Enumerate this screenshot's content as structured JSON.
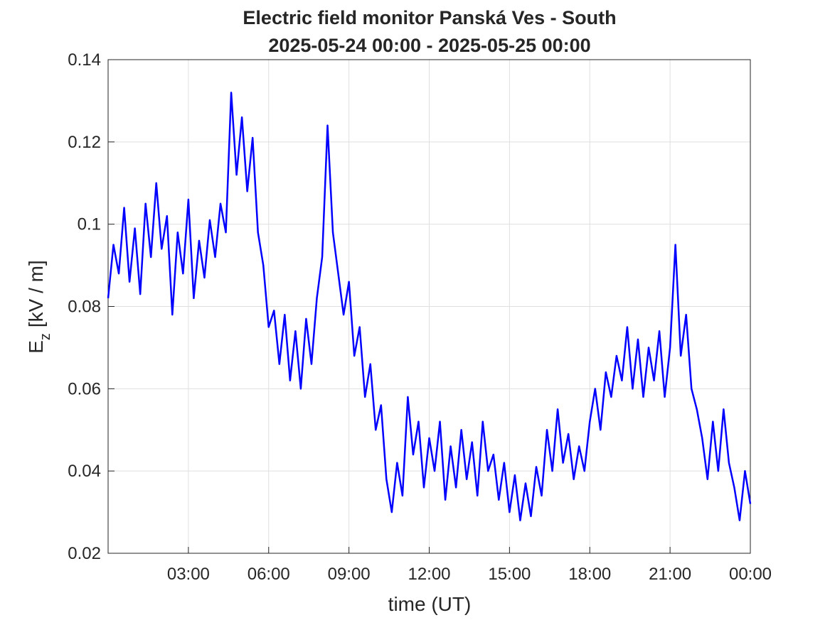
{
  "chart_data": {
    "type": "line",
    "title": "Electric field monitor Panská Ves - South",
    "subtitle": "2025-05-24 00:00 - 2025-05-25 00:00",
    "xlabel": "time (UT)",
    "ylabel_base": "E",
    "ylabel_subscript": "z",
    "ylabel_unit": "[kV / m]",
    "xlim": [
      0,
      24
    ],
    "xticks": [
      {
        "value": 3,
        "label": "03:00"
      },
      {
        "value": 6,
        "label": "06:00"
      },
      {
        "value": 9,
        "label": "09:00"
      },
      {
        "value": 12,
        "label": "12:00"
      },
      {
        "value": 15,
        "label": "15:00"
      },
      {
        "value": 18,
        "label": "18:00"
      },
      {
        "value": 21,
        "label": "21:00"
      },
      {
        "value": 24,
        "label": "00:00"
      }
    ],
    "ylim": [
      0.02,
      0.14
    ],
    "yticks": [
      0.02,
      0.04,
      0.06,
      0.08,
      0.1,
      0.12,
      0.14
    ],
    "grid": true,
    "x": [
      0,
      0.2,
      0.4,
      0.6,
      0.8,
      1,
      1.2,
      1.4,
      1.6,
      1.8,
      2,
      2.2,
      2.4,
      2.6,
      2.8,
      3,
      3.2,
      3.4,
      3.6,
      3.8,
      4,
      4.2,
      4.4,
      4.6,
      4.8,
      5,
      5.2,
      5.4,
      5.6,
      5.8,
      6,
      6.2,
      6.4,
      6.6,
      6.8,
      7,
      7.2,
      7.4,
      7.6,
      7.8,
      8,
      8.2,
      8.4,
      8.6,
      8.8,
      9,
      9.2,
      9.4,
      9.6,
      9.8,
      10,
      10.2,
      10.4,
      10.6,
      10.8,
      11,
      11.2,
      11.4,
      11.6,
      11.8,
      12,
      12.2,
      12.4,
      12.6,
      12.8,
      13,
      13.2,
      13.4,
      13.6,
      13.8,
      14,
      14.2,
      14.4,
      14.6,
      14.8,
      15,
      15.2,
      15.4,
      15.6,
      15.8,
      16,
      16.2,
      16.4,
      16.6,
      16.8,
      17,
      17.2,
      17.4,
      17.6,
      17.8,
      18,
      18.2,
      18.4,
      18.6,
      18.8,
      19,
      19.2,
      19.4,
      19.6,
      19.8,
      20,
      20.2,
      20.4,
      20.6,
      20.8,
      21,
      21.2,
      21.4,
      21.6,
      21.8,
      22,
      22.2,
      22.4,
      22.6,
      22.8,
      23,
      23.2,
      23.4,
      23.6,
      23.8,
      24
    ],
    "series": [
      {
        "color": "#0000ff",
        "values": [
          0.082,
          0.095,
          0.088,
          0.104,
          0.086,
          0.099,
          0.083,
          0.105,
          0.092,
          0.11,
          0.094,
          0.102,
          0.078,
          0.098,
          0.088,
          0.106,
          0.082,
          0.096,
          0.087,
          0.101,
          0.092,
          0.105,
          0.098,
          0.132,
          0.112,
          0.126,
          0.108,
          0.121,
          0.098,
          0.09,
          0.075,
          0.079,
          0.066,
          0.078,
          0.062,
          0.074,
          0.06,
          0.077,
          0.066,
          0.082,
          0.092,
          0.124,
          0.098,
          0.088,
          0.078,
          0.086,
          0.068,
          0.075,
          0.058,
          0.066,
          0.05,
          0.056,
          0.038,
          0.03,
          0.042,
          0.034,
          0.058,
          0.044,
          0.052,
          0.036,
          0.048,
          0.04,
          0.052,
          0.033,
          0.046,
          0.036,
          0.05,
          0.038,
          0.047,
          0.034,
          0.052,
          0.04,
          0.044,
          0.033,
          0.042,
          0.03,
          0.039,
          0.028,
          0.037,
          0.029,
          0.041,
          0.034,
          0.05,
          0.04,
          0.055,
          0.042,
          0.049,
          0.038,
          0.046,
          0.04,
          0.052,
          0.06,
          0.05,
          0.064,
          0.058,
          0.068,
          0.062,
          0.075,
          0.06,
          0.072,
          0.058,
          0.07,
          0.062,
          0.074,
          0.058,
          0.07,
          0.095,
          0.068,
          0.078,
          0.06,
          0.055,
          0.048,
          0.038,
          0.052,
          0.04,
          0.055,
          0.042,
          0.036,
          0.028,
          0.04,
          0.032
        ]
      }
    ]
  }
}
